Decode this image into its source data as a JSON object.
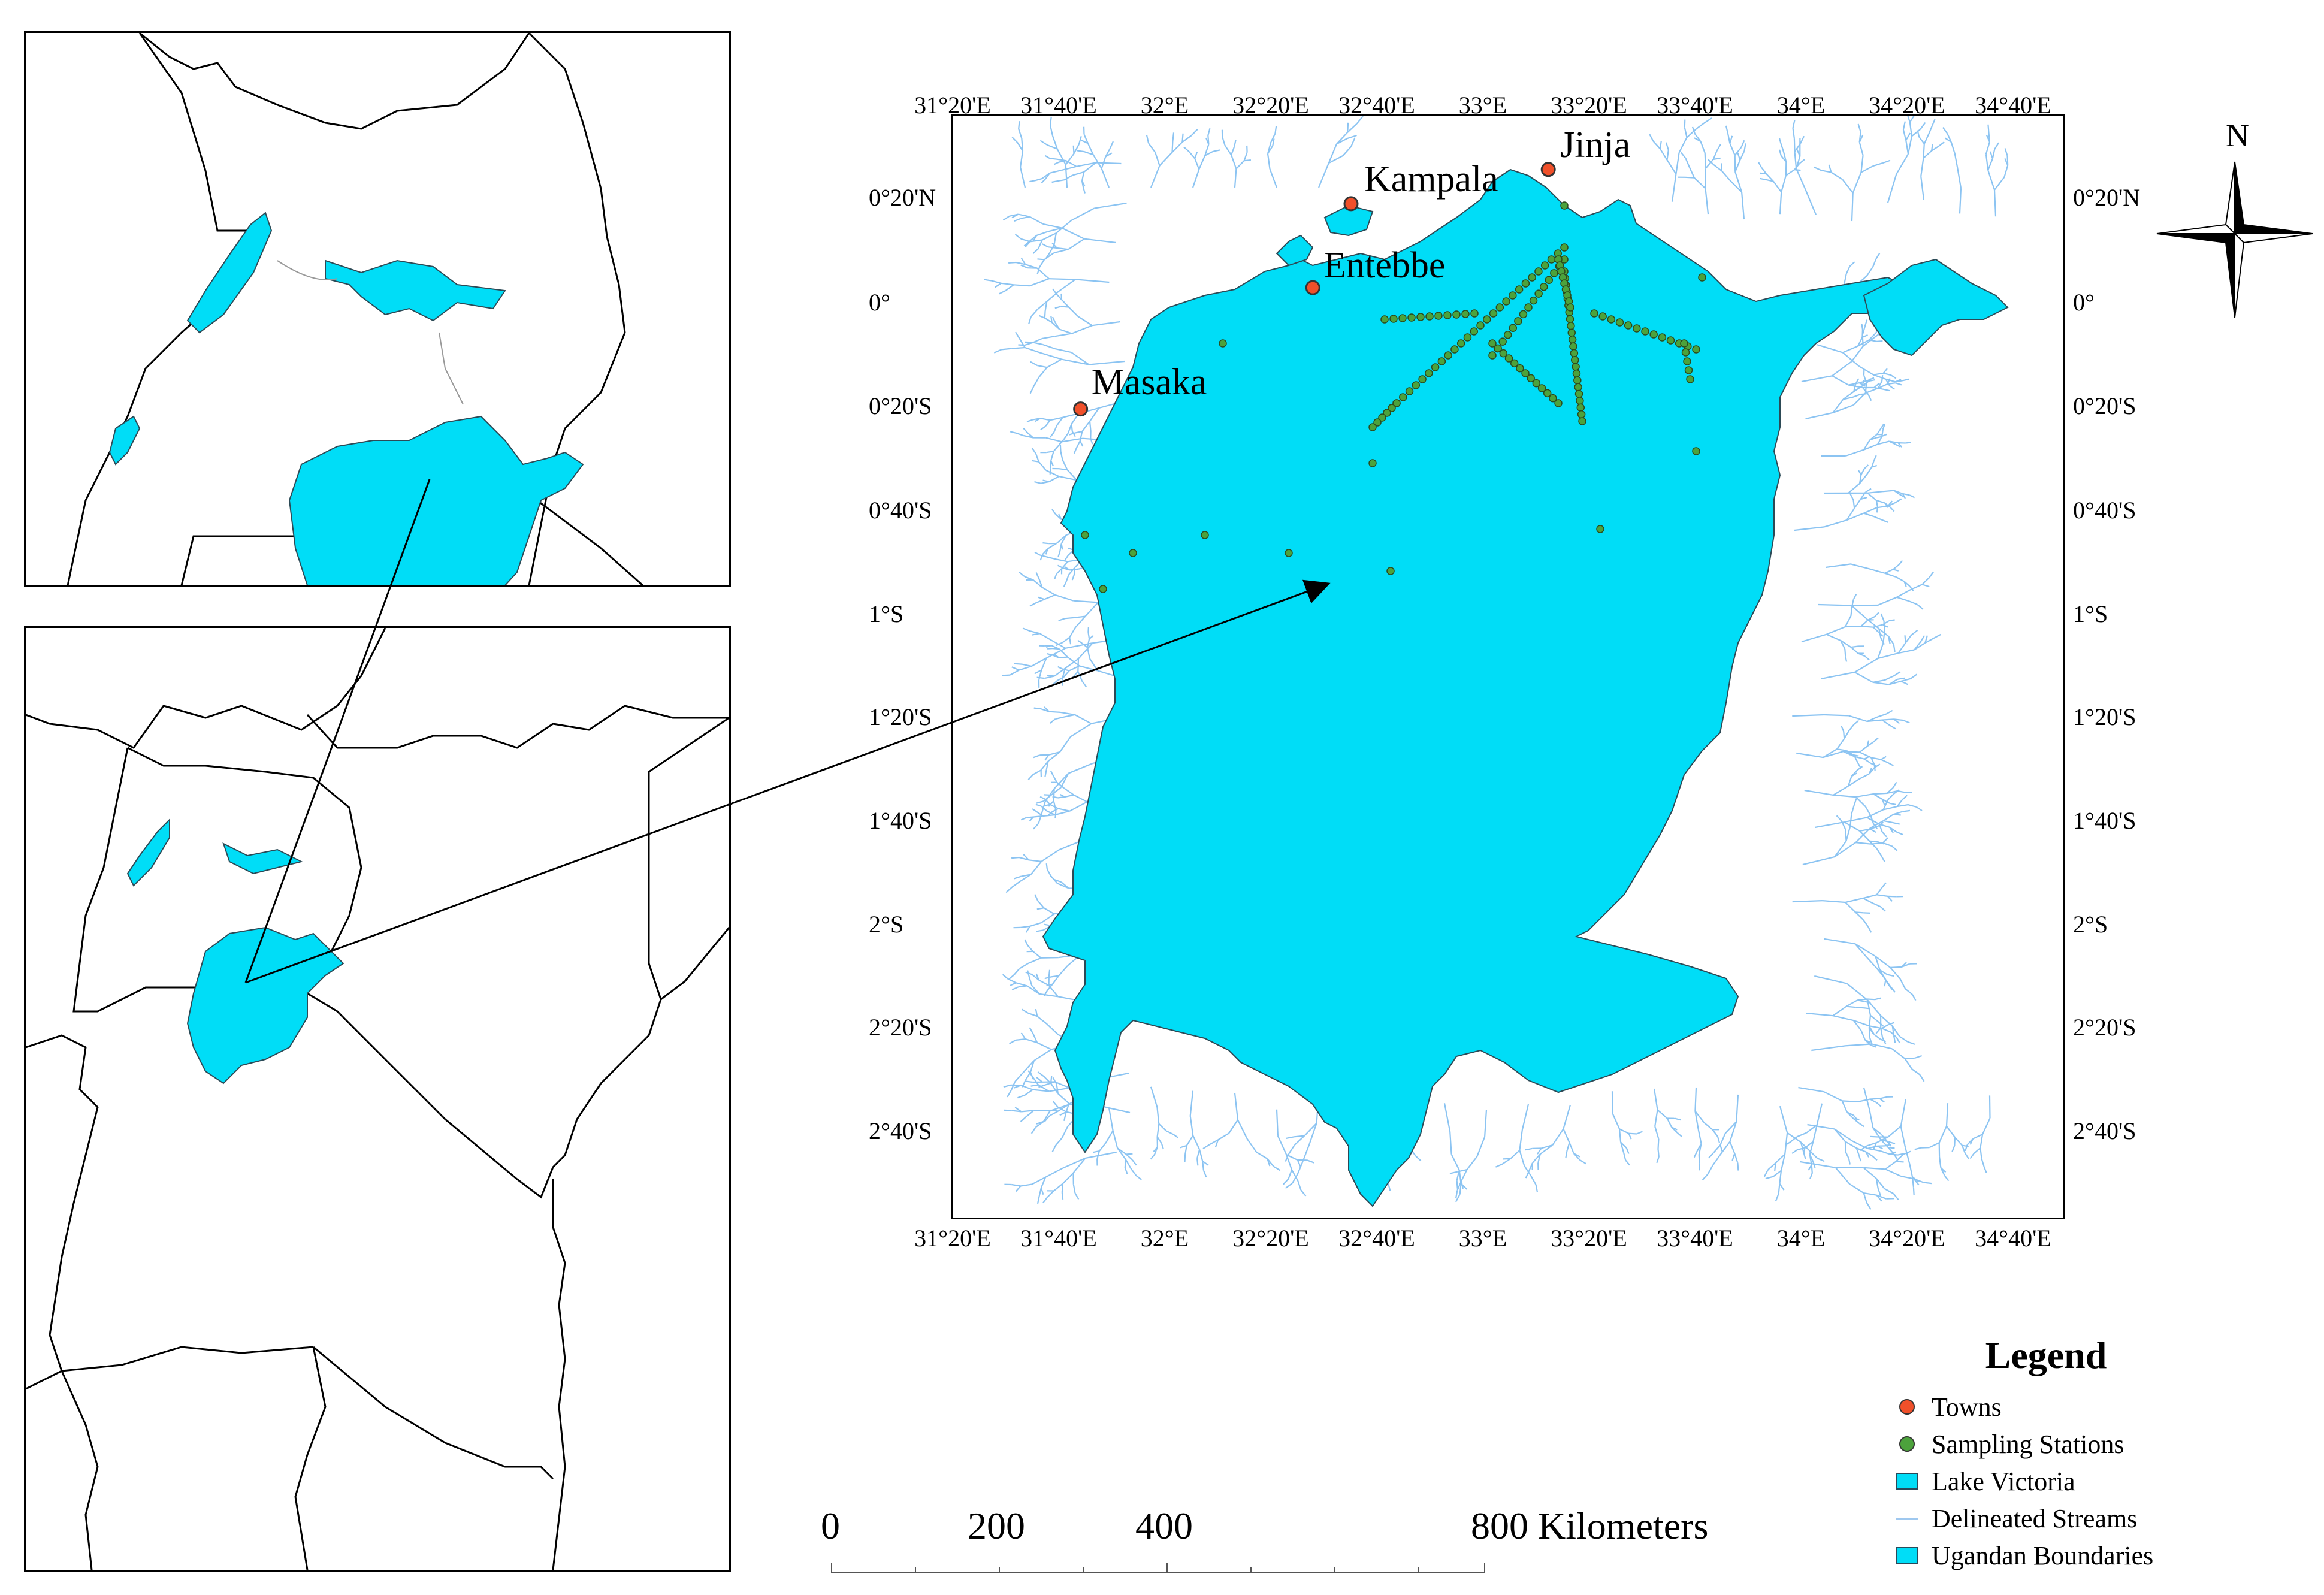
{
  "colors": {
    "lake": "#00ddf7",
    "lake_border": "#2c4a56",
    "stream": "#8cc4f2",
    "towns": "#f0502a",
    "sampling_stations": "#4ca23c",
    "boundary": "#000000"
  },
  "main_map": {
    "lon_ticks": [
      "31°20'E",
      "31°40'E",
      "32°E",
      "32°20'E",
      "32°40'E",
      "33°E",
      "33°20'E",
      "33°40'E",
      "34°E",
      "34°20'E",
      "34°40'E"
    ],
    "lat_ticks_left": [
      "0°20'N",
      "0°",
      "0°20'S",
      "0°40'S",
      "1°S",
      "1°20'S",
      "1°40'S",
      "2°S",
      "2°20'S",
      "2°40'S"
    ],
    "lat_ticks_right": [
      "0°20'N",
      "0°",
      "0°20'S",
      "0°40'S",
      "1°S",
      "1°20'S",
      "1°40'S",
      "2°S",
      "2°20'S",
      "2°40'S"
    ],
    "towns": [
      {
        "name": "Jinja",
        "lon": 33.2,
        "lat": 0.43
      },
      {
        "name": "Kampala",
        "lon": 32.58,
        "lat": 0.32
      },
      {
        "name": "Entebbe",
        "lon": 32.46,
        "lat": 0.05
      },
      {
        "name": "Masaka",
        "lon": 31.73,
        "lat": -0.34
      }
    ]
  },
  "north_arrow": {
    "label": "N"
  },
  "legend": {
    "title": "Legend",
    "items": [
      {
        "label": "Towns",
        "symbol": "dot",
        "color_key": "towns"
      },
      {
        "label": "Sampling Stations",
        "symbol": "dot",
        "color_key": "sampling_stations"
      },
      {
        "label": "Lake Victoria",
        "symbol": "swatch",
        "color_key": "lake"
      },
      {
        "label": "Delineated Streams",
        "symbol": "line",
        "color_key": "stream"
      },
      {
        "label": "Ugandan Boundaries",
        "symbol": "swatch",
        "color_key": "lake"
      }
    ]
  },
  "scale_bar": {
    "labels": [
      "0",
      "200",
      "400",
      "800 Kilometers"
    ]
  }
}
